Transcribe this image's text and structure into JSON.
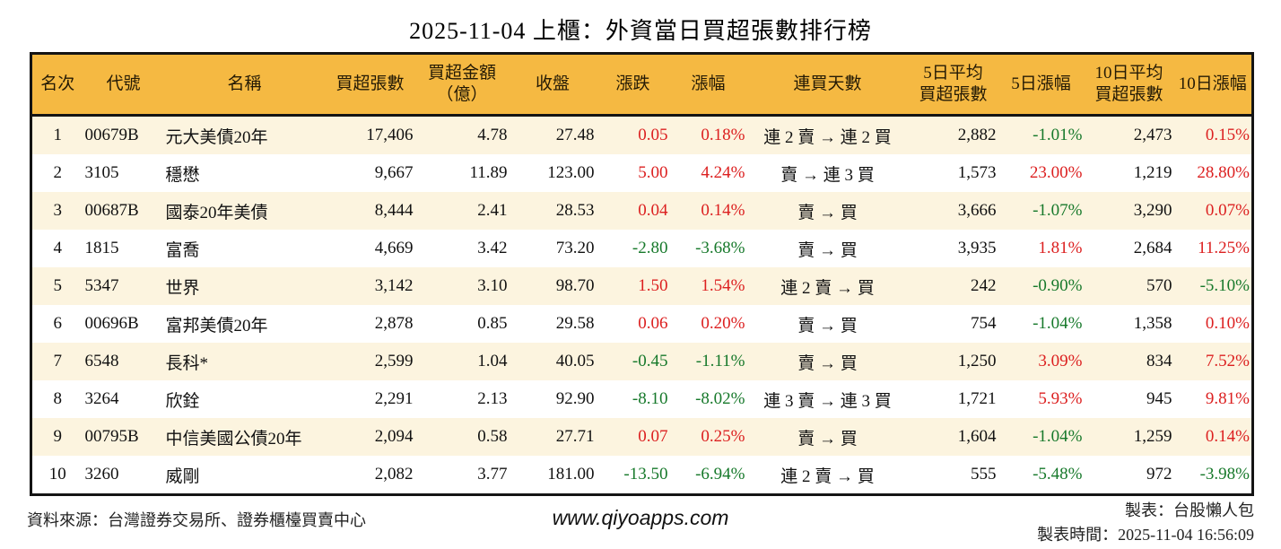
{
  "title": "2025-11-04 上櫃：外資當日買超張數排行榜",
  "colors": {
    "header_bg": "#F5B942",
    "row_alt_bg": "#FCF4DF",
    "border": "#141414",
    "up_red": "#DC2020",
    "down_green": "#17792B"
  },
  "chart_data": {
    "type": "table",
    "title": "2025-11-04 上櫃：外資當日買超張數排行榜",
    "columns": [
      {
        "key": "rank",
        "label": "名次",
        "align": "center",
        "signed": false
      },
      {
        "key": "code",
        "label": "代號",
        "align": "left",
        "signed": false
      },
      {
        "key": "name",
        "label": "名稱",
        "align": "left",
        "signed": false
      },
      {
        "key": "net_buy_lots",
        "label": "買超張數",
        "align": "right",
        "signed": false
      },
      {
        "key": "net_buy_amount",
        "label": "買超金額\n（億）",
        "align": "right",
        "signed": false
      },
      {
        "key": "close",
        "label": "收盤",
        "align": "right",
        "signed": false
      },
      {
        "key": "change",
        "label": "漲跌",
        "align": "right",
        "signed": true
      },
      {
        "key": "change_pct",
        "label": "漲幅",
        "align": "right",
        "signed": true
      },
      {
        "key": "buy_streak",
        "label": "連買天數",
        "align": "center",
        "signed": false
      },
      {
        "key": "avg5_net_buy",
        "label": "5日平均\n買超張數",
        "align": "right",
        "signed": false
      },
      {
        "key": "pct5",
        "label": "5日漲幅",
        "align": "right",
        "signed": true
      },
      {
        "key": "avg10_net_buy",
        "label": "10日平均\n買超張數",
        "align": "right",
        "signed": false
      },
      {
        "key": "pct10",
        "label": "10日漲幅",
        "align": "right",
        "signed": true
      }
    ],
    "rows": [
      [
        "1",
        "00679B",
        "元大美債20年",
        "17,406",
        "4.78",
        "27.48",
        "0.05",
        "0.18%",
        "連 2 賣 → 連 2 買",
        "2,882",
        "-1.01%",
        "2,473",
        "0.15%"
      ],
      [
        "2",
        "3105",
        "穩懋",
        "9,667",
        "11.89",
        "123.00",
        "5.00",
        "4.24%",
        "賣 → 連 3 買",
        "1,573",
        "23.00%",
        "1,219",
        "28.80%"
      ],
      [
        "3",
        "00687B",
        "國泰20年美債",
        "8,444",
        "2.41",
        "28.53",
        "0.04",
        "0.14%",
        "賣 → 買",
        "3,666",
        "-1.07%",
        "3,290",
        "0.07%"
      ],
      [
        "4",
        "1815",
        "富喬",
        "4,669",
        "3.42",
        "73.20",
        "-2.80",
        "-3.68%",
        "賣 → 買",
        "3,935",
        "1.81%",
        "2,684",
        "11.25%"
      ],
      [
        "5",
        "5347",
        "世界",
        "3,142",
        "3.10",
        "98.70",
        "1.50",
        "1.54%",
        "連 2 賣 → 買",
        "242",
        "-0.90%",
        "570",
        "-5.10%"
      ],
      [
        "6",
        "00696B",
        "富邦美債20年",
        "2,878",
        "0.85",
        "29.58",
        "0.06",
        "0.20%",
        "賣 → 買",
        "754",
        "-1.04%",
        "1,358",
        "0.10%"
      ],
      [
        "7",
        "6548",
        "長科*",
        "2,599",
        "1.04",
        "40.05",
        "-0.45",
        "-1.11%",
        "賣 → 買",
        "1,250",
        "3.09%",
        "834",
        "7.52%"
      ],
      [
        "8",
        "3264",
        "欣銓",
        "2,291",
        "2.13",
        "92.90",
        "-8.10",
        "-8.02%",
        "連 3 賣 → 連 3 買",
        "1,721",
        "5.93%",
        "945",
        "9.81%"
      ],
      [
        "9",
        "00795B",
        "中信美國公債20年",
        "2,094",
        "0.58",
        "27.71",
        "0.07",
        "0.25%",
        "賣 → 買",
        "1,604",
        "-1.04%",
        "1,259",
        "0.14%"
      ],
      [
        "10",
        "3260",
        "威剛",
        "2,082",
        "3.77",
        "181.00",
        "-13.50",
        "-6.94%",
        "連 2 賣 → 買",
        "555",
        "-5.48%",
        "972",
        "-3.98%"
      ]
    ]
  },
  "footer": {
    "source": "資料來源：台灣證券交易所、證券櫃檯買賣中心",
    "website": "www.qiyoapps.com",
    "maker": "製表：台股懶人包",
    "made_at": "製表時間：2025-11-04 16:56:09"
  }
}
